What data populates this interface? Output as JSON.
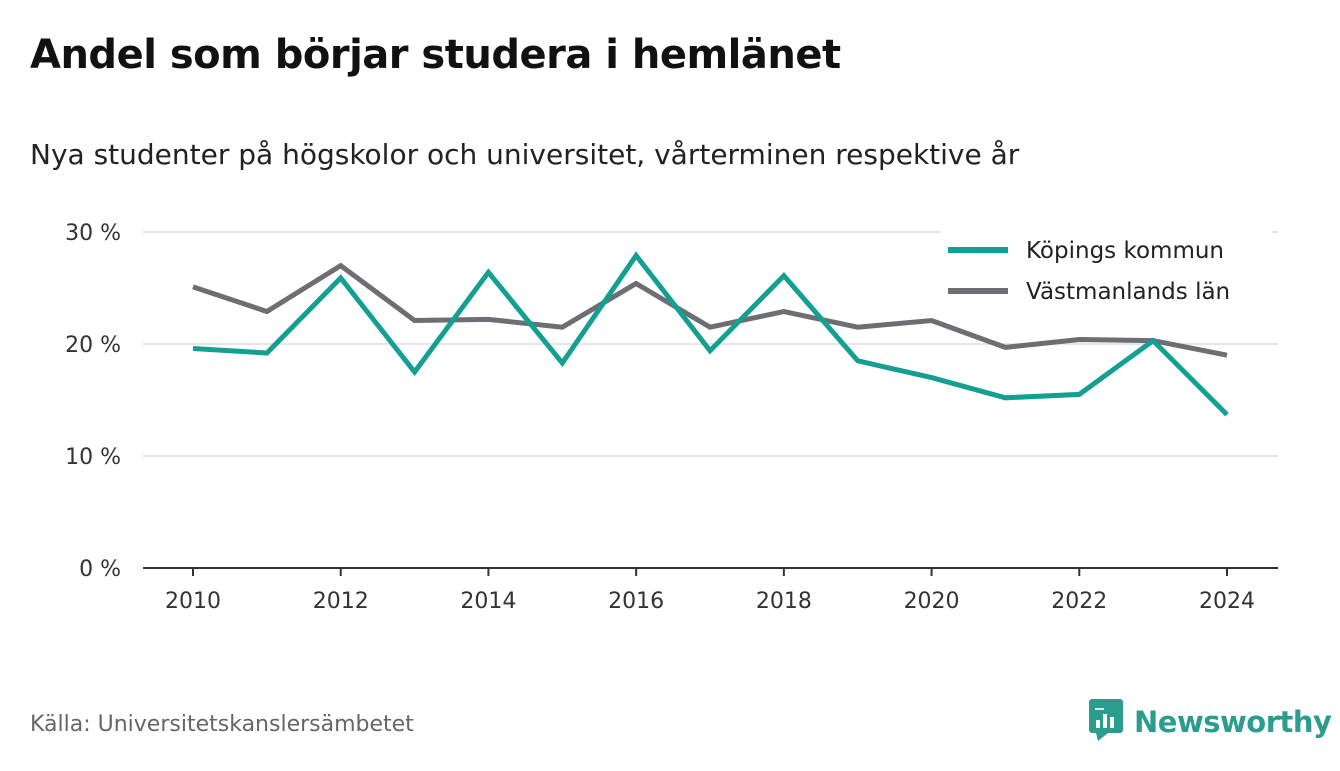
{
  "title": "Andel som börjar studera i hemlänet",
  "subtitle": "Nya studenter på högskolor och universitet, vårterminen respektive år",
  "source": "Källa: Universitetskanslersämbetet",
  "brand": "Newsworthy",
  "brand_icon": "bar-chart-speech-bubble-icon",
  "colors": {
    "kopings": "#13a093",
    "vastmanland": "#6e6d73",
    "grid": "#dddddd",
    "axis": "#333333",
    "brand": "#2a9d8f"
  },
  "chart_data": {
    "type": "line",
    "title": "Andel som börjar studera i hemlänet",
    "subtitle": "Nya studenter på högskolor och universitet, vårterminen respektive år",
    "x": [
      2010,
      2011,
      2012,
      2013,
      2014,
      2015,
      2016,
      2017,
      2018,
      2019,
      2020,
      2021,
      2022,
      2023,
      2024
    ],
    "x_ticks": [
      "2010",
      "2012",
      "2014",
      "2016",
      "2018",
      "2020",
      "2022",
      "2024"
    ],
    "y_ticks": [
      "0 %",
      "10 %",
      "20 %",
      "30 %"
    ],
    "ylim": [
      0,
      30
    ],
    "unit": "%",
    "grid": true,
    "legend_position": "top-right",
    "series": [
      {
        "name": "Köpings kommun",
        "color": "#13a093",
        "values": [
          19.6,
          19.2,
          25.9,
          17.5,
          26.4,
          18.3,
          27.9,
          19.4,
          26.1,
          18.5,
          17.0,
          15.2,
          15.5,
          20.3,
          13.7
        ]
      },
      {
        "name": "Västmanlands län",
        "color": "#6e6d73",
        "values": [
          25.1,
          22.9,
          27.0,
          22.1,
          22.2,
          21.5,
          25.4,
          21.5,
          22.9,
          21.5,
          22.1,
          19.7,
          20.4,
          20.3,
          19.0
        ]
      }
    ]
  }
}
